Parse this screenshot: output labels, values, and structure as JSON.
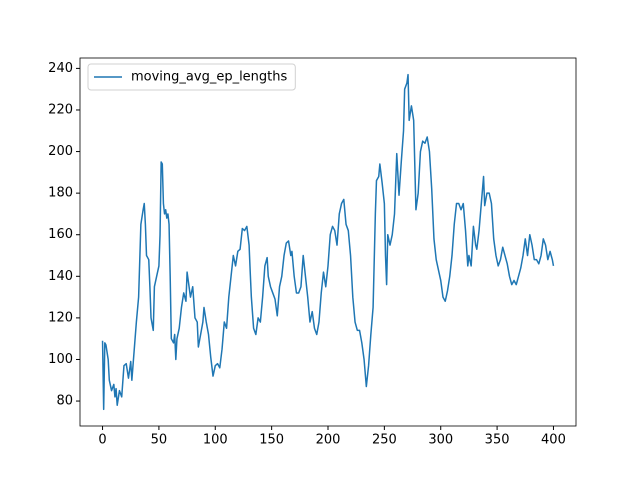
{
  "chart_data": {
    "type": "line",
    "x": [
      0,
      1,
      2,
      3,
      5,
      6,
      8,
      10,
      11,
      12,
      13,
      15,
      17,
      19,
      21,
      23,
      25,
      26,
      28,
      30,
      32,
      34,
      36,
      37,
      38,
      39,
      41,
      42,
      43,
      45,
      46,
      48,
      50,
      51,
      52,
      53,
      54,
      55,
      56,
      57,
      58,
      59,
      60,
      61,
      63,
      64,
      65,
      66,
      68,
      70,
      72,
      74,
      75,
      76,
      78,
      80,
      82,
      84,
      85,
      87,
      89,
      90,
      92,
      94,
      96,
      98,
      100,
      102,
      104,
      106,
      108,
      110,
      112,
      114,
      116,
      118,
      120,
      122,
      124,
      126,
      128,
      130,
      131,
      132,
      134,
      136,
      138,
      140,
      142,
      144,
      146,
      147,
      149,
      151,
      153,
      155,
      157,
      159,
      161,
      163,
      165,
      167,
      168,
      170,
      172,
      174,
      176,
      178,
      180,
      182,
      184,
      186,
      188,
      190,
      192,
      194,
      196,
      198,
      200,
      202,
      204,
      206,
      208,
      210,
      212,
      214,
      216,
      218,
      220,
      222,
      224,
      226,
      228,
      230,
      232,
      234,
      236,
      238,
      240,
      242,
      243,
      245,
      246,
      248,
      250,
      251,
      252,
      253,
      255,
      257,
      259,
      261,
      263,
      265,
      267,
      268,
      270,
      271,
      272,
      274,
      276,
      278,
      280,
      282,
      284,
      286,
      288,
      290,
      292,
      294,
      296,
      298,
      300,
      302,
      304,
      306,
      308,
      310,
      312,
      314,
      316,
      318,
      320,
      322,
      324,
      325,
      327,
      329,
      331,
      332,
      334,
      336,
      338,
      339,
      341,
      343,
      345,
      347,
      349,
      351,
      353,
      355,
      357,
      359,
      361,
      363,
      365,
      367,
      369,
      371,
      373,
      375,
      377,
      379,
      381,
      383,
      385,
      387,
      389,
      391,
      393,
      395,
      397,
      399,
      400
    ],
    "series": [
      {
        "name": "moving_avg_ep_lengths",
        "color": "#1f77b4",
        "values": [
          109,
          76,
          108,
          107,
          100,
          90,
          85,
          88,
          82,
          86,
          78,
          85,
          82,
          97,
          98,
          91,
          99,
          90,
          104,
          118,
          130,
          165,
          172,
          175,
          165,
          150,
          148,
          135,
          120,
          114,
          135,
          140,
          145,
          160,
          195,
          194,
          175,
          170,
          172,
          168,
          170,
          165,
          140,
          110,
          108,
          112,
          100,
          110,
          115,
          125,
          132,
          128,
          142,
          138,
          130,
          135,
          120,
          118,
          106,
          112,
          118,
          125,
          118,
          112,
          101,
          92,
          97,
          98,
          96,
          105,
          118,
          115,
          130,
          140,
          150,
          145,
          152,
          153,
          163,
          162,
          164,
          155,
          142,
          130,
          115,
          112,
          120,
          118,
          130,
          145,
          149,
          140,
          135,
          132,
          129,
          121,
          135,
          140,
          150,
          156,
          157,
          150,
          152,
          140,
          132,
          132,
          135,
          150,
          140,
          130,
          118,
          123,
          115,
          112,
          118,
          132,
          142,
          135,
          145,
          160,
          164,
          162,
          155,
          170,
          175,
          177,
          165,
          162,
          150,
          130,
          118,
          114,
          114,
          108,
          100,
          87,
          97,
          112,
          125,
          170,
          186,
          188,
          194,
          185,
          175,
          150,
          136,
          160,
          155,
          160,
          170,
          199,
          179,
          195,
          210,
          230,
          233,
          237,
          215,
          222,
          215,
          172,
          180,
          200,
          205,
          204,
          207,
          200,
          182,
          158,
          148,
          143,
          138,
          130,
          128,
          133,
          140,
          150,
          165,
          175,
          175,
          172,
          175,
          162,
          145,
          150,
          145,
          164,
          155,
          153,
          162,
          175,
          188,
          174,
          180,
          180,
          175,
          158,
          150,
          145,
          148,
          154,
          150,
          146,
          140,
          136,
          138,
          136,
          140,
          144,
          150,
          158,
          150,
          160,
          155,
          148,
          148,
          146,
          150,
          158,
          155,
          148,
          152,
          148,
          145
        ]
      }
    ],
    "xlim": [
      -20,
      420
    ],
    "ylim": [
      68,
      245
    ],
    "xticks": [
      0,
      50,
      100,
      150,
      200,
      250,
      300,
      350,
      400
    ],
    "yticks": [
      80,
      100,
      120,
      140,
      160,
      180,
      200,
      220,
      240
    ],
    "grid": false,
    "legend": "upper left"
  }
}
